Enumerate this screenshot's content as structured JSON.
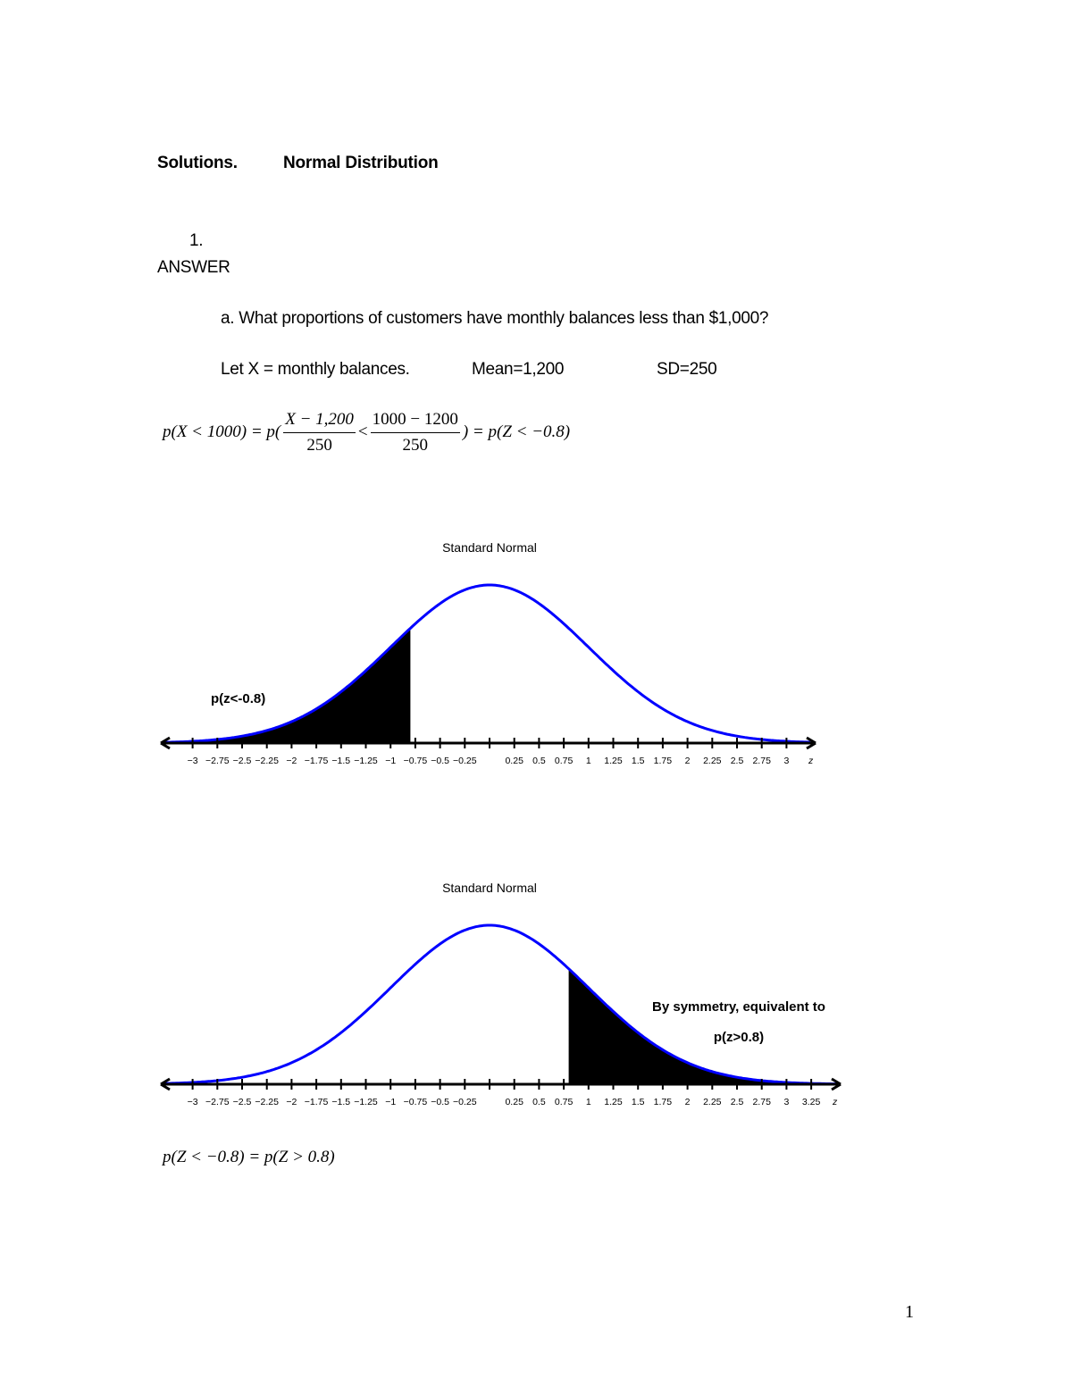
{
  "document": {
    "title_left": "Solutions.",
    "title_right": "Normal Distribution",
    "question_number": "1.",
    "answer_label": "ANSWER",
    "question_a": "a. What proportions of customers have monthly balances less than $1,000?",
    "given": {
      "variable": "Let X = monthly balances.",
      "mean": "Mean=1,200",
      "sd": "SD=250"
    },
    "equation1": {
      "lhs": "p(X < 1000) = p(",
      "frac1_num": "X − 1,200",
      "frac1_den": "250",
      "lt": "<",
      "frac2_num": "1000 − 1200",
      "frac2_den": "250",
      "rhs": ") = p(Z < −0.8)"
    },
    "equation2": "p(Z < −0.8) = p(Z > 0.8)",
    "page_number": "1"
  },
  "chart_data": [
    {
      "type": "area",
      "title": "Standard Normal",
      "xlabel": "z",
      "ylabel": "",
      "distribution": "standard normal N(0,1)",
      "xlim": [
        -3.25,
        3.25
      ],
      "tick_labels": [
        "−3",
        "−2.75",
        "−2.5",
        "−2.25",
        "−2",
        "−1.75",
        "−1.5",
        "−1.25",
        "−1",
        "−0.75",
        "−0.5",
        "−0.25",
        "0.25",
        "0.5",
        "0.75",
        "1",
        "1.25",
        "1.5",
        "1.75",
        "2",
        "2.25",
        "2.5",
        "2.75",
        "3",
        "z"
      ],
      "ticks": [
        -3,
        -2.75,
        -2.5,
        -2.25,
        -2,
        -1.75,
        -1.5,
        -1.25,
        -1,
        -0.75,
        -0.5,
        -0.25,
        0,
        0.25,
        0.5,
        0.75,
        1,
        1.25,
        1.5,
        1.75,
        2,
        2.25,
        2.5,
        2.75,
        3
      ],
      "shaded_region": {
        "from": -3.25,
        "to": -0.8,
        "color": "#000000"
      },
      "annotation": "p(z<-0.8)",
      "curve_color": "#0000ff",
      "grid": false
    },
    {
      "type": "area",
      "title": "Standard Normal",
      "xlabel": "z",
      "ylabel": "",
      "distribution": "standard normal N(0,1)",
      "xlim": [
        -3.25,
        3.5
      ],
      "tick_labels": [
        "−3",
        "−2.75",
        "−2.5",
        "−2.25",
        "−2",
        "−1.75",
        "−1.5",
        "−1.25",
        "−1",
        "−0.75",
        "−0.5",
        "−0.25",
        "0.25",
        "0.5",
        "0.75",
        "1",
        "1.25",
        "1.5",
        "1.75",
        "2",
        "2.25",
        "2.5",
        "2.75",
        "3",
        "3.25",
        "z"
      ],
      "ticks": [
        -3,
        -2.75,
        -2.5,
        -2.25,
        -2,
        -1.75,
        -1.5,
        -1.25,
        -1,
        -0.75,
        -0.5,
        -0.25,
        0,
        0.25,
        0.5,
        0.75,
        1,
        1.25,
        1.5,
        1.75,
        2,
        2.25,
        2.5,
        2.75,
        3,
        3.25
      ],
      "shaded_region": {
        "from": 0.8,
        "to": 3.5,
        "color": "#000000"
      },
      "annotation": [
        "By symmetry, equivalent to",
        "p(z>0.8)"
      ],
      "curve_color": "#0000ff",
      "grid": false
    }
  ]
}
